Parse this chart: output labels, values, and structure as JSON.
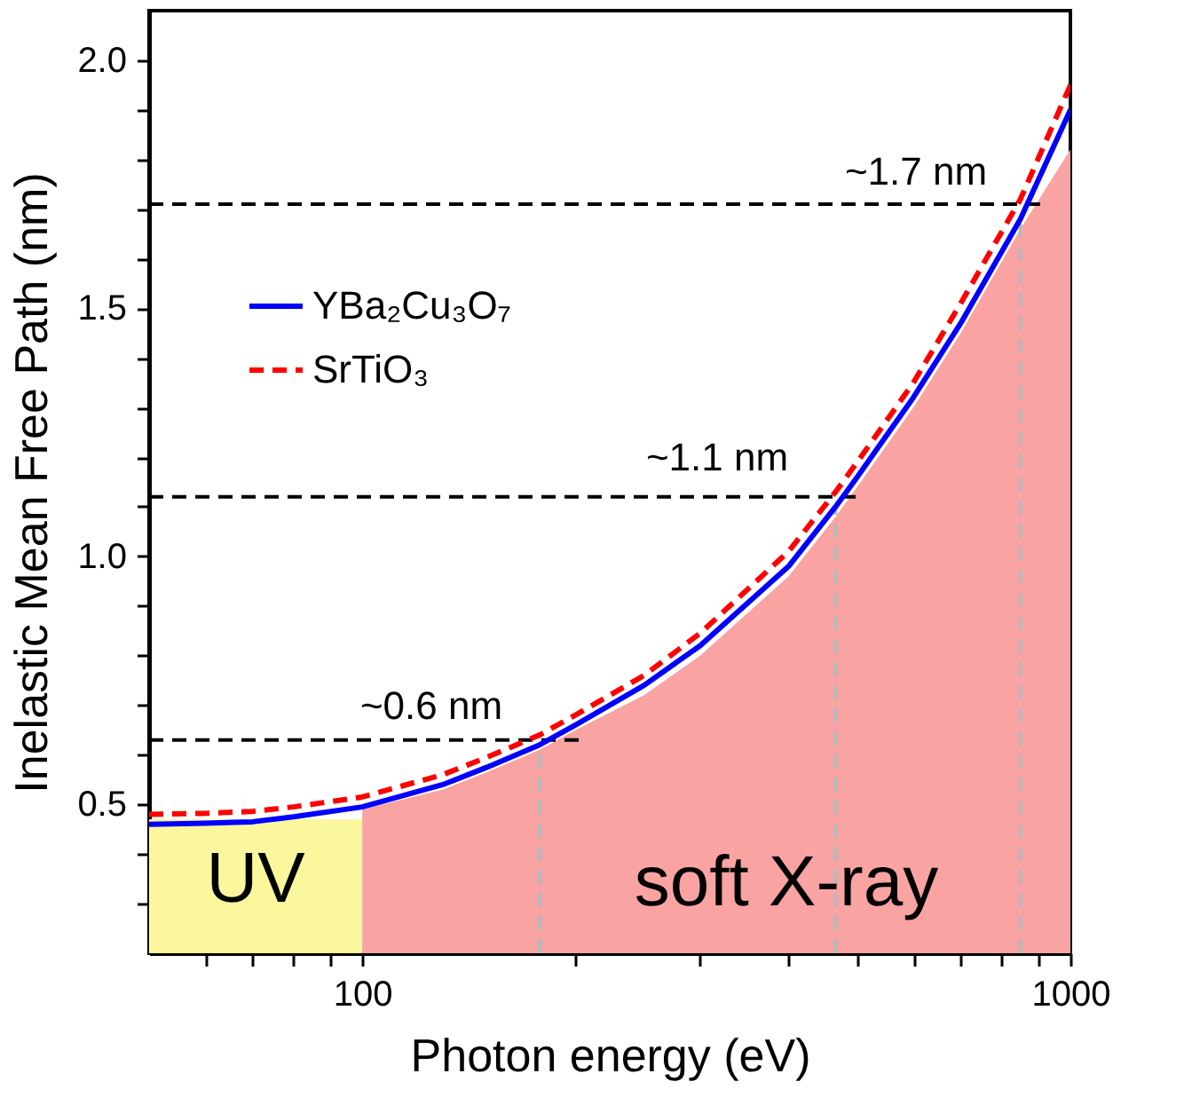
{
  "chart_data": {
    "type": "line",
    "xlabel": "Photon energy (eV)",
    "ylabel": "Inelastic Mean Free Path (nm)",
    "log": "x",
    "grid": false,
    "legend": "top left",
    "xlim": [
      50,
      1000
    ],
    "ylim": [
      0.2,
      2.1
    ],
    "xticks": [
      {
        "value": 60,
        "label": null
      },
      {
        "value": 70,
        "label": null
      },
      {
        "value": 80,
        "label": null
      },
      {
        "value": 90,
        "label": null
      },
      100,
      {
        "value": 200,
        "label": null
      },
      {
        "value": 300,
        "label": null
      },
      {
        "value": 400,
        "label": null
      },
      {
        "value": 500,
        "label": null
      },
      {
        "value": 600,
        "label": null
      },
      {
        "value": 700,
        "label": null
      },
      {
        "value": 800,
        "label": null
      },
      {
        "value": 900,
        "label": null
      },
      1000
    ],
    "yticks": [
      {
        "value": 0.3,
        "label": null
      },
      {
        "value": 0.4,
        "label": null
      },
      0.5,
      {
        "value": 0.6,
        "label": null
      },
      {
        "value": 0.7,
        "label": null
      },
      {
        "value": 0.8,
        "label": null
      },
      {
        "value": 0.9,
        "label": null
      },
      {
        "value": 1,
        "label": "1.0"
      },
      {
        "value": 1.1,
        "label": null
      },
      {
        "value": 1.2,
        "label": null
      },
      {
        "value": 1.3,
        "label": null
      },
      {
        "value": 1.4,
        "label": null
      },
      1.5,
      {
        "value": 1.6,
        "label": null
      },
      {
        "value": 1.7,
        "label": null
      },
      {
        "value": 1.8,
        "label": null
      },
      {
        "value": 1.9,
        "label": null
      },
      {
        "value": 2,
        "label": "2.0"
      }
    ],
    "series": [
      {
        "type": "area",
        "color": "#fbf79c",
        "x": [
          50,
          100
        ],
        "values": [
          0.47,
          0.47
        ]
      },
      {
        "type": "area",
        "color": "#f9a3a3",
        "x": [
          100,
          130,
          150,
          178,
          200,
          250,
          300,
          400,
          466,
          500,
          600,
          700,
          850,
          1000
        ],
        "values": [
          0.49,
          0.53,
          0.565,
          0.61,
          0.65,
          0.72,
          0.8,
          0.96,
          1.08,
          1.14,
          1.3,
          1.45,
          1.66,
          1.82
        ]
      },
      {
        "name": "YBa₂Cu₃O₇",
        "color": "#0000ff",
        "line_style": "solid",
        "x": [
          50,
          60,
          70,
          80,
          100,
          130,
          150,
          178,
          200,
          250,
          300,
          400,
          466,
          500,
          600,
          700,
          850,
          1000
        ],
        "values": [
          0.46,
          0.462,
          0.465,
          0.475,
          0.495,
          0.54,
          0.575,
          0.62,
          0.66,
          0.74,
          0.82,
          0.98,
          1.1,
          1.16,
          1.32,
          1.47,
          1.68,
          1.9
        ]
      },
      {
        "name": "SrTiO₃",
        "color": "#ff0000",
        "line_style": "dashed",
        "x": [
          50,
          60,
          70,
          80,
          100,
          130,
          150,
          178,
          200,
          250,
          300,
          400,
          466,
          500,
          600,
          700,
          850,
          1000
        ],
        "values": [
          0.48,
          0.482,
          0.486,
          0.495,
          0.515,
          0.56,
          0.595,
          0.64,
          0.68,
          0.76,
          0.845,
          1.01,
          1.13,
          1.19,
          1.35,
          1.51,
          1.72,
          1.95
        ]
      },
      {
        "color": "#000000",
        "line_style": "dashed",
        "x": [
          50,
          204
        ],
        "values": [
          0.63,
          0.63
        ]
      },
      {
        "color": "#000000",
        "line_style": "dashed",
        "x": [
          50,
          508
        ],
        "values": [
          1.12,
          1.12
        ]
      },
      {
        "color": "#000000",
        "line_style": "dashed",
        "x": [
          50,
          906
        ],
        "values": [
          1.71,
          1.71
        ]
      },
      {
        "color": "#b8b8b8",
        "line_style": "dashed",
        "x": [
          178,
          178
        ],
        "values": [
          0.2,
          0.62
        ]
      },
      {
        "color": "#b8b8b8",
        "line_style": "dashed",
        "x": [
          466,
          466
        ],
        "values": [
          0.2,
          1.1
        ]
      },
      {
        "color": "#b8b8b8",
        "line_style": "dashed",
        "x": [
          850,
          850
        ],
        "values": [
          0.2,
          1.68
        ]
      }
    ],
    "annotations": [
      "~0.6 nm",
      "~1.1 nm",
      "~1.7 nm",
      "UV",
      "soft X-ray"
    ]
  }
}
